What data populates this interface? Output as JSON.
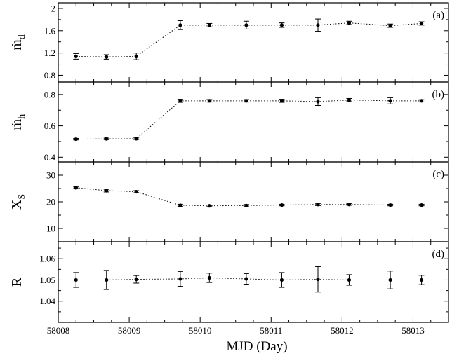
{
  "chart_data": {
    "type": "line",
    "xlabel": "MJD (Day)",
    "xlim": [
      58008.0,
      58013.5
    ],
    "xticks": [
      58008,
      58009,
      58010,
      58011,
      58012,
      58013
    ],
    "x": [
      58008.25,
      58008.68,
      58009.1,
      58009.72,
      58010.13,
      58010.65,
      58011.15,
      58011.66,
      58012.1,
      58012.68,
      58013.12
    ],
    "panels": [
      {
        "label": "(a)",
        "ylabel": "ṁ",
        "ylabel_sub": "d",
        "ylim": [
          0.68,
          2.1
        ],
        "yticks": [
          0.8,
          1.2,
          1.6,
          2.0
        ],
        "ytick_labels": [
          "0.8",
          "1.2",
          "1.6",
          "2"
        ],
        "values": [
          1.14,
          1.13,
          1.14,
          1.7,
          1.7,
          1.7,
          1.7,
          1.7,
          1.74,
          1.69,
          1.73
        ],
        "errors": [
          0.05,
          0.04,
          0.06,
          0.08,
          0.03,
          0.07,
          0.04,
          0.11,
          0.03,
          0.03,
          0.03
        ]
      },
      {
        "label": "(b)",
        "ylabel": "ṁ",
        "ylabel_sub": "h",
        "ylim": [
          0.37,
          0.88
        ],
        "yticks": [
          0.4,
          0.6,
          0.8
        ],
        "ytick_labels": [
          "0.4",
          "0.6",
          "0.8"
        ],
        "values": [
          0.515,
          0.517,
          0.518,
          0.76,
          0.76,
          0.76,
          0.76,
          0.755,
          0.765,
          0.76,
          0.76
        ],
        "errors": [
          0.005,
          0.005,
          0.005,
          0.01,
          0.008,
          0.008,
          0.01,
          0.025,
          0.01,
          0.02,
          0.007
        ]
      },
      {
        "label": "(c)",
        "ylabel": "X",
        "ylabel_sub": "S",
        "ylim": [
          5,
          35
        ],
        "yticks": [
          10,
          20,
          30
        ],
        "ytick_labels": [
          "10",
          "20",
          "30"
        ],
        "values": [
          25.3,
          24.2,
          23.8,
          18.7,
          18.5,
          18.6,
          18.8,
          19.0,
          19.0,
          18.8,
          18.8
        ],
        "errors": [
          0.3,
          0.5,
          0.4,
          0.4,
          0.3,
          0.4,
          0.3,
          0.4,
          0.3,
          0.3,
          0.3
        ]
      },
      {
        "label": "(d)",
        "ylabel": "R",
        "ylabel_sub": "",
        "ylim": [
          1.03,
          1.068
        ],
        "yticks": [
          1.04,
          1.05,
          1.06
        ],
        "ytick_labels": [
          "1.04",
          "1.05",
          "1.06"
        ],
        "values": [
          1.05,
          1.05,
          1.0503,
          1.0505,
          1.051,
          1.0505,
          1.05,
          1.0503,
          1.05,
          1.05,
          1.05
        ],
        "errors": [
          0.0035,
          0.0045,
          0.0018,
          0.0035,
          0.0022,
          0.0025,
          0.0035,
          0.006,
          0.0025,
          0.0042,
          0.0022
        ]
      }
    ]
  }
}
